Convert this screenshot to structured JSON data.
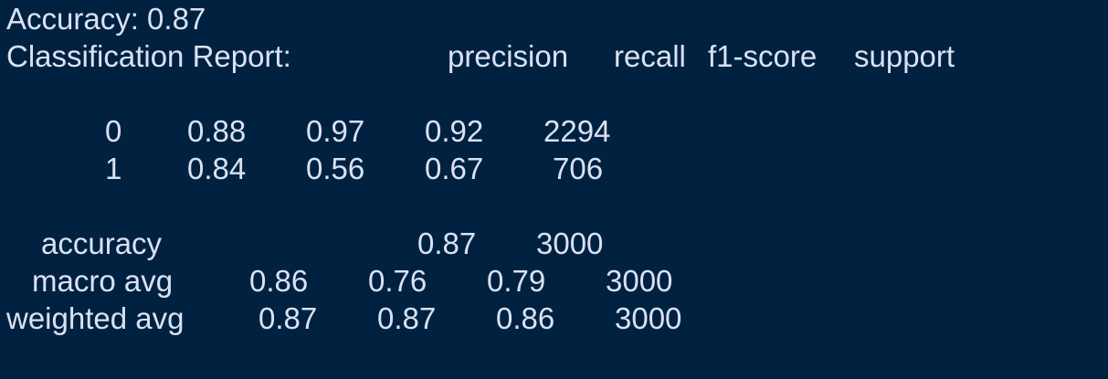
{
  "accuracy_line": "Accuracy: 0.87",
  "report_title": "Classification Report:",
  "headers": {
    "precision": "precision",
    "recall": "recall",
    "f1": "f1-score",
    "support": "support"
  },
  "rows": [
    {
      "label": "0",
      "precision": "0.88",
      "recall": "0.97",
      "f1": "0.92",
      "support": "2294"
    },
    {
      "label": "1",
      "precision": "0.84",
      "recall": "0.56",
      "f1": "0.67",
      "support": "706"
    }
  ],
  "summary": {
    "accuracy": {
      "label": "accuracy",
      "f1": "0.87",
      "support": "3000"
    },
    "macro": {
      "label": "macro avg",
      "precision": "0.86",
      "recall": "0.76",
      "f1": "0.79",
      "support": "3000"
    },
    "weighted": {
      "label": "weighted avg",
      "precision": "0.87",
      "recall": "0.87",
      "f1": "0.86",
      "support": "3000"
    }
  }
}
